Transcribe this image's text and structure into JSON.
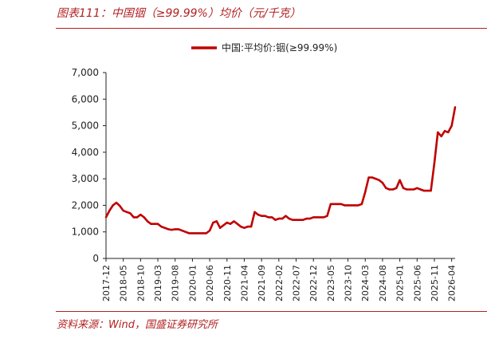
{
  "figure": {
    "title": "图表111：中国铟（≥99.99%）均价（元/千克）",
    "source": "资料来源：Wind，国盛证券研究所",
    "accent_color": "#c00000",
    "rule_color": "#b22222"
  },
  "chart_data": {
    "type": "line",
    "title": "",
    "xlabel": "",
    "ylabel": "",
    "ylim": [
      0,
      7000
    ],
    "yticks": [
      "0",
      "1,000",
      "2,000",
      "3,000",
      "4,000",
      "5,000",
      "6,000",
      "7,000"
    ],
    "xticks": [
      "2017-12",
      "2018-05",
      "2018-10",
      "2019-03",
      "2019-08",
      "2020-01",
      "2020-06",
      "2020-11",
      "2021-04",
      "2021-09",
      "2022-02",
      "2022-07",
      "2022-12",
      "2023-05",
      "2023-10",
      "2024-03",
      "2024-08",
      "2025-01",
      "2025-06",
      "2025-11",
      "2026-04"
    ],
    "grid": false,
    "legend_position": "top-center",
    "series": [
      {
        "name": "中国:平均价:铟(≥99.99%)",
        "color": "#c00000",
        "x": [
          "2017-12",
          "2018-01",
          "2018-02",
          "2018-03",
          "2018-04",
          "2018-05",
          "2018-06",
          "2018-07",
          "2018-08",
          "2018-09",
          "2018-10",
          "2018-11",
          "2018-12",
          "2019-01",
          "2019-02",
          "2019-03",
          "2019-04",
          "2019-05",
          "2019-06",
          "2019-07",
          "2019-08",
          "2019-09",
          "2019-10",
          "2019-11",
          "2019-12",
          "2020-01",
          "2020-02",
          "2020-03",
          "2020-04",
          "2020-05",
          "2020-06",
          "2020-07",
          "2020-08",
          "2020-09",
          "2020-10",
          "2020-11",
          "2020-12",
          "2021-01",
          "2021-02",
          "2021-03",
          "2021-04",
          "2021-05",
          "2021-06",
          "2021-07",
          "2021-08",
          "2021-09",
          "2021-10",
          "2021-11",
          "2021-12",
          "2022-01",
          "2022-02",
          "2022-03",
          "2022-04",
          "2022-05",
          "2022-06",
          "2022-07",
          "2022-08",
          "2022-09",
          "2022-10",
          "2022-11",
          "2022-12",
          "2023-01",
          "2023-02",
          "2023-03",
          "2023-04",
          "2023-05",
          "2023-06",
          "2023-07",
          "2023-08",
          "2023-09",
          "2023-10",
          "2023-11",
          "2023-12",
          "2024-01",
          "2024-02",
          "2024-03",
          "2024-04",
          "2024-05",
          "2024-06",
          "2024-07",
          "2024-08",
          "2024-09",
          "2024-10",
          "2024-11",
          "2024-12",
          "2025-01",
          "2025-02",
          "2025-03",
          "2025-04",
          "2025-05",
          "2025-06",
          "2025-07",
          "2025-08",
          "2025-09",
          "2025-10",
          "2025-11",
          "2025-12",
          "2026-01",
          "2026-02",
          "2026-03",
          "2026-04",
          "2026-05"
        ],
        "values": [
          1550,
          1800,
          2000,
          2100,
          1980,
          1800,
          1750,
          1700,
          1550,
          1550,
          1650,
          1550,
          1400,
          1300,
          1300,
          1300,
          1200,
          1150,
          1100,
          1080,
          1100,
          1100,
          1050,
          1000,
          950,
          950,
          950,
          950,
          950,
          950,
          1050,
          1350,
          1400,
          1150,
          1250,
          1350,
          1300,
          1400,
          1300,
          1200,
          1150,
          1200,
          1200,
          1750,
          1650,
          1600,
          1600,
          1550,
          1550,
          1450,
          1500,
          1500,
          1600,
          1500,
          1450,
          1450,
          1450,
          1450,
          1500,
          1500,
          1550,
          1550,
          1550,
          1550,
          1600,
          2050,
          2050,
          2050,
          2050,
          2000,
          2000,
          2000,
          2000,
          2000,
          2050,
          2500,
          3050,
          3050,
          3000,
          2950,
          2850,
          2650,
          2600,
          2600,
          2650,
          2950,
          2650,
          2600,
          2600,
          2600,
          2650,
          2600,
          2550,
          2550,
          2550,
          3600,
          4750,
          4600,
          4800,
          4750,
          5000,
          5700
        ]
      }
    ]
  }
}
